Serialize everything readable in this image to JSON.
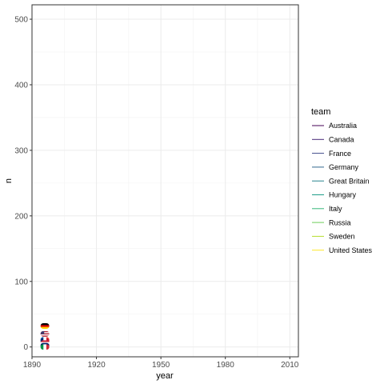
{
  "chart_data": {
    "type": "line",
    "xlabel": "year",
    "ylabel": "n",
    "xlim": [
      1890,
      2014
    ],
    "ylim": [
      -15,
      522
    ],
    "x_ticks": [
      1890,
      1920,
      1950,
      1980,
      2010
    ],
    "y_ticks": [
      0,
      100,
      200,
      300,
      400,
      500
    ],
    "grid": true,
    "legend": {
      "title": "team",
      "position": "right"
    },
    "series": [
      {
        "name": "Australia",
        "color": "#440154",
        "x": [
          1896
        ],
        "y": [
          2
        ]
      },
      {
        "name": "Canada",
        "color": "#482878",
        "x": [
          1896
        ],
        "y": [
          0
        ]
      },
      {
        "name": "France",
        "color": "#3E4A89",
        "x": [
          1896
        ],
        "y": [
          11
        ]
      },
      {
        "name": "Germany",
        "color": "#31688E",
        "x": [
          1896
        ],
        "y": [
          32
        ]
      },
      {
        "name": "Great Britain",
        "color": "#26828E",
        "x": [
          1896
        ],
        "y": [
          9
        ]
      },
      {
        "name": "Hungary",
        "color": "#1F9E89",
        "x": [
          1896
        ],
        "y": [
          6
        ]
      },
      {
        "name": "Italy",
        "color": "#35B779",
        "x": [
          1896
        ],
        "y": [
          0
        ]
      },
      {
        "name": "Russia",
        "color": "#6DCD59",
        "x": [
          1896
        ],
        "y": [
          0
        ]
      },
      {
        "name": "Sweden",
        "color": "#B4DE2C",
        "x": [
          1896
        ],
        "y": [
          0
        ]
      },
      {
        "name": "United States",
        "color": "#FDE725",
        "x": [
          1896
        ],
        "y": [
          20
        ]
      }
    ],
    "flag_markers": [
      {
        "team": "Germany",
        "stripes": [
          "#000000",
          "#DD0000",
          "#FFCE00"
        ],
        "x": 1896,
        "y": 32
      },
      {
        "team": "United States",
        "stripes": [
          "#B22234",
          "#FFFFFF",
          "#B22234",
          "#FFFFFF",
          "#B22234"
        ],
        "canton": "#3C3B6E",
        "x": 1896,
        "y": 20
      },
      {
        "team": "France",
        "vstripes": [
          "#0055A4",
          "#FFFFFF",
          "#EF4135"
        ],
        "x": 1896,
        "y": 11
      },
      {
        "team": "Great Britain",
        "vstripes": [
          "#012169",
          "#FFFFFF",
          "#C8102E"
        ],
        "x": 1896,
        "y": 9
      },
      {
        "team": "Hungary",
        "stripes": [
          "#CD2A3E",
          "#FFFFFF",
          "#436F4D"
        ],
        "x": 1896,
        "y": 6
      },
      {
        "team": "Australia",
        "stripes": [
          "#012169",
          "#012169",
          "#FFFFFF"
        ],
        "x": 1896,
        "y": 2
      },
      {
        "team": "Italy",
        "vstripes": [
          "#009246",
          "#FFFFFF",
          "#CE2B37"
        ],
        "x": 1896,
        "y": 0
      }
    ]
  }
}
